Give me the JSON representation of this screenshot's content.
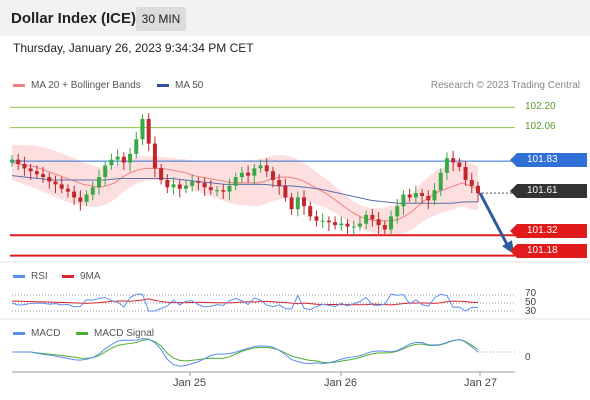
{
  "header": {
    "title": "Dollar Index (ICE)",
    "interval": "30 MIN"
  },
  "datetime": "Thursday, January 26, 2023 9:34:34 PM CET",
  "legend": {
    "ma20": "MA 20 + Bollinger Bands",
    "ma50": "MA 50",
    "research": "Research © 2023 Trading Central"
  },
  "levels": [
    {
      "value": 102.2,
      "label": "102.20",
      "kind": "resistance-line",
      "color": "#8dc63f"
    },
    {
      "value": 102.06,
      "label": "102.06",
      "kind": "resistance-line",
      "color": "#8dc63f"
    },
    {
      "value": 101.83,
      "label": "101.83",
      "kind": "pivot",
      "color": "#2f6fd6"
    },
    {
      "value": 101.61,
      "label": "101.61",
      "kind": "last-price",
      "color": "#333333"
    },
    {
      "value": 101.32,
      "label": "101.32",
      "kind": "target",
      "color": "#e11b1b"
    },
    {
      "value": 101.18,
      "label": "101.18",
      "kind": "target",
      "color": "#e11b1b"
    }
  ],
  "rsi": {
    "label": "RSI",
    "ma_label": "9MA",
    "levels": [
      "70",
      "50",
      "30"
    ]
  },
  "macd": {
    "label": "MACD",
    "signal_label": "MACD Signal",
    "zero_label": "0"
  },
  "xaxis": [
    "Jan 25",
    "Jan 26",
    "Jan 27"
  ],
  "colors": {
    "up": "#39a845",
    "down": "#c0262b",
    "band": "#fdd7d7",
    "ma20": "#f08080",
    "ma50": "#5a6fa8",
    "rsi": "#5b8def",
    "rsi_ma": "#d9252b",
    "macd": "#5b8def",
    "macd_signal": "#4caf30",
    "arrow": "#2a5d9f"
  },
  "chart_data": {
    "type": "candlestick",
    "title": "Dollar Index (ICE)",
    "interval": "30 MIN",
    "ylim": [
      101.15,
      102.25
    ],
    "x_ticks": [
      "Jan 25",
      "Jan 26",
      "Jan 27"
    ],
    "close": [
      101.84,
      101.81,
      101.78,
      101.76,
      101.74,
      101.72,
      101.69,
      101.67,
      101.64,
      101.62,
      101.58,
      101.55,
      101.6,
      101.65,
      101.72,
      101.8,
      101.84,
      101.86,
      101.82,
      101.88,
      101.98,
      102.12,
      101.95,
      101.78,
      101.7,
      101.65,
      101.67,
      101.64,
      101.66,
      101.69,
      101.68,
      101.65,
      101.63,
      101.63,
      101.62,
      101.66,
      101.72,
      101.75,
      101.73,
      101.78,
      101.8,
      101.76,
      101.7,
      101.66,
      101.58,
      101.5,
      101.58,
      101.52,
      101.45,
      101.42,
      101.42,
      101.41,
      101.39,
      101.4,
      101.38,
      101.38,
      101.4,
      101.46,
      101.43,
      101.39,
      101.36,
      101.45,
      101.52,
      101.6,
      101.58,
      101.61,
      101.59,
      101.56,
      101.63,
      101.75,
      101.85,
      101.82,
      101.79,
      101.7,
      101.66,
      101.61
    ],
    "ma20": [
      101.82,
      101.81,
      101.8,
      101.79,
      101.77,
      101.75,
      101.73,
      101.71,
      101.69,
      101.67,
      101.66,
      101.65,
      101.66,
      101.68,
      101.72,
      101.75,
      101.77,
      101.78,
      101.78,
      101.78,
      101.77,
      101.76,
      101.75,
      101.73,
      101.72,
      101.71,
      101.7,
      101.69,
      101.68,
      101.68,
      101.68,
      101.68,
      101.69,
      101.71,
      101.72,
      101.72,
      101.71,
      101.69,
      101.66,
      101.63,
      101.6,
      101.56,
      101.52,
      101.48,
      101.45,
      101.43,
      101.42,
      101.42,
      101.42,
      101.43,
      101.46,
      101.5,
      101.55,
      101.59,
      101.62,
      101.64,
      101.66,
      101.68,
      101.66,
      101.64
    ],
    "ma50": [
      101.73,
      101.72,
      101.71,
      101.7,
      101.7,
      101.7,
      101.7,
      101.7,
      101.71,
      101.71,
      101.71,
      101.71,
      101.71,
      101.7,
      101.69,
      101.68,
      101.67,
      101.67,
      101.67,
      101.67,
      101.66,
      101.66,
      101.65,
      101.64,
      101.62,
      101.6,
      101.58,
      101.56,
      101.55,
      101.54,
      101.54,
      101.54,
      101.54,
      101.54,
      101.55,
      101.55
    ],
    "levels": [
      102.2,
      102.06,
      101.83,
      101.61,
      101.32,
      101.18
    ],
    "rsi_levels": [
      70,
      50,
      30
    ],
    "macd_zero": 0
  }
}
